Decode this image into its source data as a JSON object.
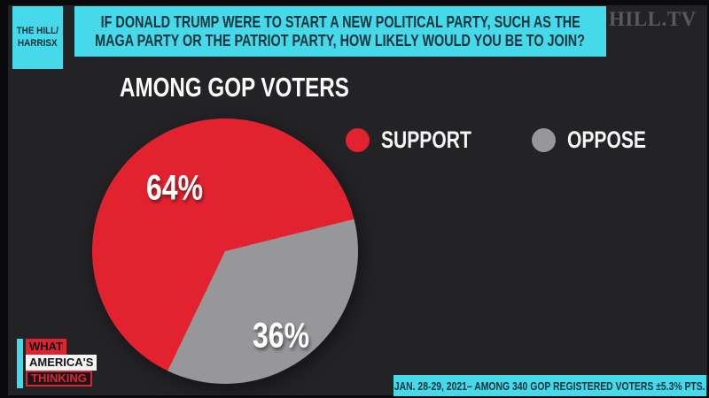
{
  "branding": {
    "network_box_line1": "THE HILL/",
    "network_box_line2": "HARRISX",
    "hilltv": "HILL.TV",
    "show_logo_line1": "WHAT",
    "show_logo_line2": "AMERICA'S",
    "show_logo_line3": "THINKING"
  },
  "question": {
    "line1": "IF DONALD TRUMP WERE TO START A NEW POLITICAL PARTY, SUCH AS THE",
    "line2": "MAGA PARTY OR THE PATRIOT PARTY, HOW LIKELY WOULD YOU BE TO JOIN?"
  },
  "section_title": "AMONG GOP VOTERS",
  "source_note": "JAN. 28-29, 2021– AMONG 340 GOP REGISTERED VOTERS ±5.3% PTS.",
  "colors": {
    "background": "#232326",
    "cyan": "#45d9e9",
    "dark_text_on_cyan": "#0e343d",
    "support_red": "#e2222f",
    "oppose_gray": "#97979a"
  },
  "chart_data": {
    "type": "pie",
    "title": "AMONG GOP VOTERS",
    "categories": [
      "SUPPORT",
      "OPPOSE"
    ],
    "values": [
      64,
      36
    ],
    "labels": [
      "64%",
      "36%"
    ],
    "slice_colors": [
      "#e2222f",
      "#97979a"
    ],
    "legend_position": "top-right",
    "oppose_start_angle_deg": 76,
    "note": "JAN. 28-29, 2021– AMONG 340 GOP REGISTERED VOTERS ±5.3% PTS."
  }
}
